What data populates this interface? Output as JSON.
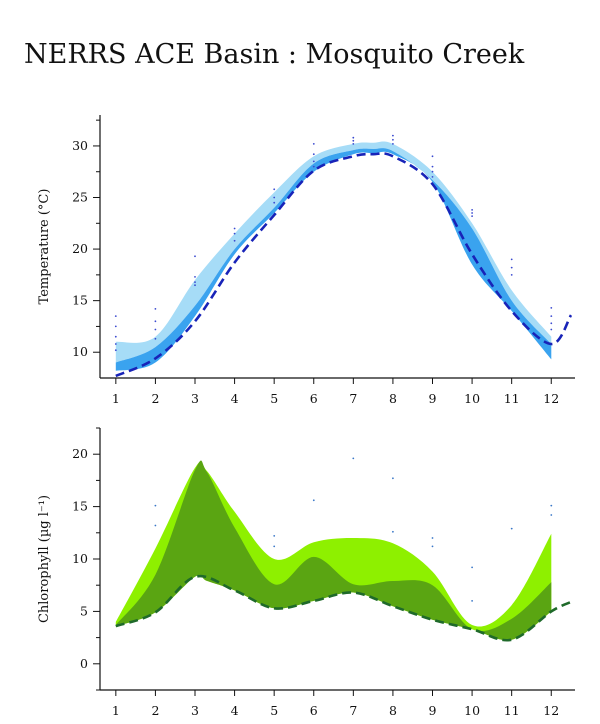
{
  "page_title": "NERRS ACE Basin : Mosquito Creek",
  "colors": {
    "temp_light": "#a6dcf7",
    "temp_dark": "#3aa3ef",
    "temp_line": "#1823b8",
    "temp_points": "#3a4ad0",
    "chl_light": "#8ef000",
    "chl_dark": "#5aa512",
    "chl_line": "#1f6a2a",
    "chl_points": "#3a78c8"
  },
  "chart_data": [
    {
      "type": "area",
      "ylabel": "Temperature (°C)",
      "xlim": [
        0.6,
        12.6
      ],
      "ylim": [
        7.5,
        33
      ],
      "x_ticks": [
        1,
        2,
        3,
        4,
        5,
        6,
        7,
        8,
        9,
        10,
        11,
        12
      ],
      "y_ticks": [
        10,
        15,
        20,
        25,
        30
      ],
      "minor_y_ticks": [
        12.5,
        17.5,
        22.5,
        27.5,
        32.5
      ],
      "series": [
        {
          "x": [
            1,
            2,
            3,
            4,
            5,
            6,
            7,
            7.5,
            8,
            9,
            10,
            11,
            12
          ],
          "low": [
            8.2,
            9.0,
            13.5,
            19.5,
            23.5,
            27.5,
            29.2,
            29.3,
            29.2,
            26.5,
            18.5,
            14.0,
            9.3
          ],
          "mid": [
            9.0,
            10.5,
            14.5,
            20.0,
            24.0,
            28.3,
            29.6,
            29.7,
            29.5,
            26.7,
            22.0,
            15.0,
            10.8
          ],
          "high": [
            11.0,
            11.5,
            17.0,
            21.5,
            25.5,
            29.0,
            30.2,
            30.3,
            30.2,
            27.5,
            22.5,
            16.0,
            11.5
          ]
        },
        {
          "x": [
            1,
            2,
            3,
            4,
            5,
            6,
            7,
            7.5,
            8,
            9,
            10,
            11,
            12,
            12.5
          ],
          "y": [
            7.7,
            9.4,
            13.0,
            18.7,
            23.3,
            27.6,
            29.0,
            29.2,
            29.0,
            26.3,
            19.5,
            14.0,
            10.8,
            13.6
          ]
        },
        {
          "x": [
            1,
            1,
            1,
            1,
            1,
            2,
            2,
            2,
            2,
            3,
            3,
            3,
            3,
            4,
            4,
            4,
            5,
            5,
            5,
            6,
            6,
            6,
            6,
            7,
            7,
            7,
            8,
            8,
            8,
            9,
            9,
            9,
            9,
            10,
            10,
            10,
            11,
            11,
            11,
            12,
            12,
            12,
            12
          ],
          "y": [
            13.5,
            12.5,
            11.5,
            10.8,
            10.2,
            14.2,
            13.0,
            12.2,
            11.3,
            19.3,
            17.3,
            16.8,
            16.5,
            22.0,
            21.5,
            20.8,
            25.8,
            25.0,
            24.5,
            30.2,
            29.2,
            28.5,
            28.0,
            30.8,
            30.5,
            30.2,
            31.0,
            30.6,
            30.2,
            29.0,
            28.0,
            27.5,
            27.0,
            23.8,
            23.5,
            23.2,
            19.0,
            18.2,
            17.5,
            14.3,
            13.5,
            12.8,
            12.2
          ]
        }
      ]
    },
    {
      "type": "area",
      "ylabel": "Chlorophyll (µg l⁻¹)",
      "xlim": [
        0.6,
        12.6
      ],
      "ylim": [
        -2.5,
        22.5
      ],
      "x_ticks": [
        1,
        2,
        3,
        4,
        5,
        6,
        7,
        8,
        9,
        10,
        11,
        12
      ],
      "y_ticks": [
        0,
        5,
        10,
        15,
        20
      ],
      "minor_y_ticks": [
        -2.5,
        2.5,
        7.5,
        12.5,
        17.5,
        22.5
      ],
      "series": [
        {
          "x": [
            1,
            2,
            3,
            3.3,
            4,
            5,
            6,
            7,
            8,
            9,
            10,
            11,
            12
          ],
          "low": [
            3.7,
            8.5,
            18.5,
            18.3,
            13.0,
            7.6,
            10.2,
            7.6,
            7.9,
            7.5,
            3.3,
            4.3,
            7.8
          ],
          "high": [
            4.0,
            11.0,
            18.7,
            18.4,
            14.5,
            10.0,
            11.6,
            12.0,
            11.5,
            8.8,
            3.7,
            5.6,
            12.4
          ]
        },
        {
          "x": [
            1,
            2,
            3,
            4,
            5,
            6,
            7,
            8,
            9,
            10,
            11,
            12,
            12.5
          ],
          "y": [
            3.6,
            4.9,
            8.3,
            7.0,
            5.3,
            6.0,
            6.8,
            5.5,
            4.2,
            3.3,
            2.3,
            5.0,
            5.9
          ]
        },
        {
          "x": [
            2,
            2,
            5,
            5,
            6,
            7,
            8,
            8,
            9,
            9,
            10,
            10,
            11,
            12,
            12
          ],
          "y": [
            15.1,
            13.2,
            12.2,
            11.2,
            15.6,
            19.6,
            17.7,
            12.6,
            12.0,
            11.2,
            9.2,
            6.0,
            12.9,
            15.1,
            14.2
          ]
        }
      ]
    }
  ]
}
